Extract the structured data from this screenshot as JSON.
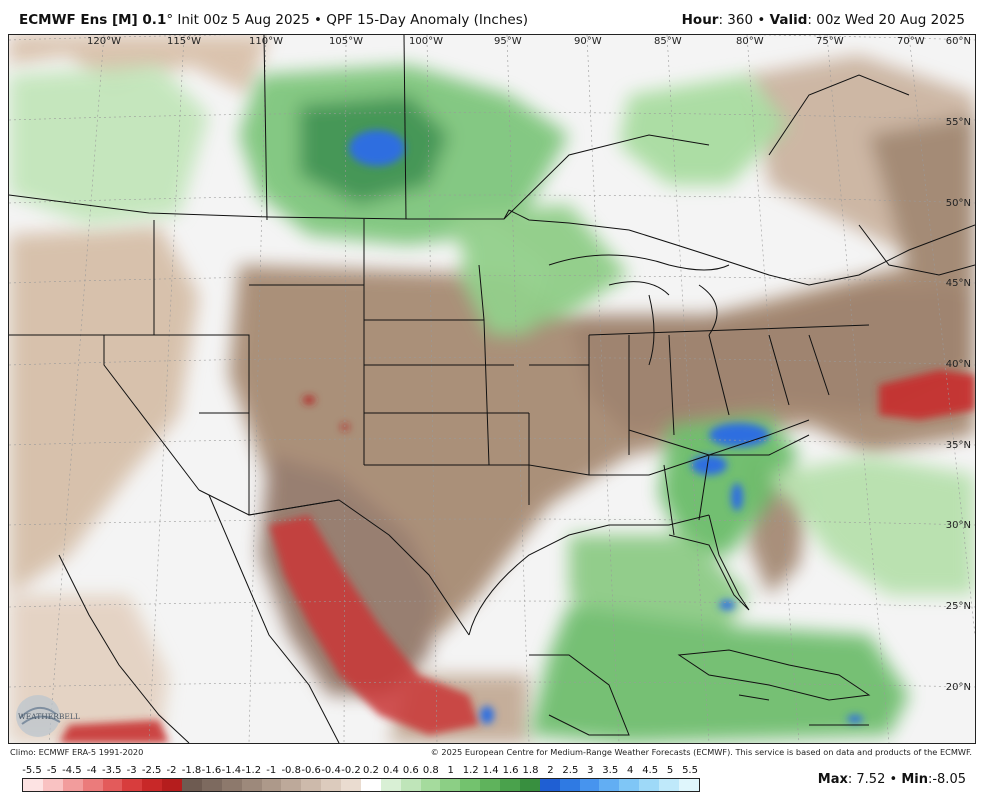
{
  "header": {
    "model": "ECMWF Ens [M] 0.1",
    "degree": "°",
    "init": "Init 00z 5 Aug 2025",
    "sep": "•",
    "product": "QPF 15-Day Anomaly (Inches)",
    "hour_label": "Hour",
    "hour_value": ": 360",
    "valid_label": "Valid",
    "valid_value": ": 00z Wed 20 Aug 2025"
  },
  "map": {
    "longitude_labels": [
      "120°W",
      "115°W",
      "110°W",
      "105°W",
      "100°W",
      "95°W",
      "90°W",
      "85°W",
      "80°W",
      "75°W",
      "70°W"
    ],
    "latitude_labels": [
      "60°N",
      "55°N",
      "50°N",
      "45°N",
      "40°N",
      "35°N",
      "30°N",
      "25°N",
      "20°N"
    ],
    "logo_text": "WEATHERBELL",
    "colors": {
      "dry_strong": "#c4262e",
      "dry": "#a7896f",
      "near_normal": "#f5f5f5",
      "wet": "#6cc26f",
      "wet_strong": "#2f8a3e",
      "very_wet": "#2f6ee0"
    }
  },
  "footer": {
    "climo": "Climo: ECMWF ERA-5 1991-2020",
    "copyright": "© 2025 European Centre for Medium-Range Weather Forecasts (ECMWF). This service is based on data and products of the ECMWF."
  },
  "colorbar": {
    "labels": [
      "-5.5",
      "-5",
      "-4.5",
      "-4",
      "-3.5",
      "-3",
      "-2.5",
      "-2",
      "-1.8",
      "-1.6",
      "-1.4",
      "-1.2",
      "-1",
      "-0.8",
      "-0.6",
      "-0.4",
      "-0.2",
      "0.2",
      "0.4",
      "0.6",
      "0.8",
      "1",
      "1.2",
      "1.4",
      "1.6",
      "1.8",
      "2",
      "2.5",
      "3",
      "3.5",
      "4",
      "4.5",
      "5",
      "5.5"
    ],
    "colors": [
      "#fde3e3",
      "#f9c2c2",
      "#f29c9c",
      "#eb7b7b",
      "#e35b5b",
      "#d83d3d",
      "#c82828",
      "#b51d1d",
      "#6e5b51",
      "#7d6a5f",
      "#8d796c",
      "#9d897b",
      "#ad998a",
      "#bda99a",
      "#cdbaab",
      "#dccbbd",
      "#eadcd0",
      "#ffffff",
      "#d9f0d5",
      "#bfe5b9",
      "#a5db9d",
      "#8ccf85",
      "#73c26e",
      "#5fb35c",
      "#4aa24c",
      "#388f3f",
      "#1f5fd3",
      "#2f7ae3",
      "#4794ee",
      "#62aef3",
      "#7fc6f6",
      "#9ed9f8",
      "#bfe9fa",
      "#dff6fc"
    ]
  },
  "stats": {
    "max_label": "Max",
    "max_value": ": 7.52",
    "sep": "•",
    "min_label": "Min",
    "min_value": ":-8.05"
  }
}
